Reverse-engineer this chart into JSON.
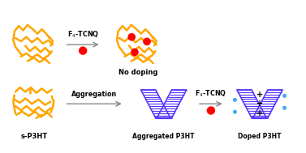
{
  "background_color": "#ffffff",
  "p3ht_color": "#FFA500",
  "p3ht_stroke": 1.8,
  "aggregated_color": "#5533FF",
  "red_dot_color": "#FF0000",
  "blue_dot_color": "#44AAEE",
  "arrow_color": "#888888",
  "text_color": "#000000",
  "label_s_p3ht": "s-P3HT",
  "label_no_doping": "No doping",
  "label_aggregated": "Aggregated P3HT",
  "label_doped": "Doped P3HT",
  "label_arrow1": "F$_4$-TCNQ",
  "label_arrow2": "Aggregation",
  "label_arrow3": "F$_4$-TCNQ",
  "figsize": [
    3.77,
    1.89
  ],
  "dpi": 100
}
